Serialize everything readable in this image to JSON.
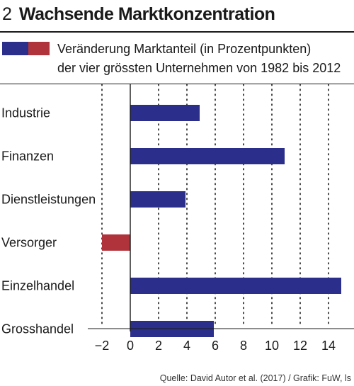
{
  "header": {
    "number": "2",
    "title": "Wachsende Marktkonzentration"
  },
  "legend": {
    "line1": "Veränderung Marktanteil (in Prozentpunkten)",
    "line2": "der vier grössten Unternehmen von 1982 bis 2012",
    "colors": [
      "#2b2e8a",
      "#b0333b"
    ]
  },
  "chart_data": {
    "type": "bar",
    "orientation": "horizontal",
    "categories": [
      "Industrie",
      "Finanzen",
      "Dienstleistungen",
      "Versorger",
      "Einzelhandel",
      "Grosshandel"
    ],
    "values": [
      4.9,
      10.9,
      3.9,
      -2,
      14.9,
      5.9
    ],
    "xlim": [
      -2,
      15
    ],
    "xticks": [
      -2,
      0,
      2,
      4,
      6,
      8,
      10,
      12,
      14
    ],
    "xtick_labels": [
      "−2",
      "0",
      "2",
      "4",
      "6",
      "8",
      "10",
      "12",
      "14"
    ],
    "grid": "vertical dotted",
    "colors": {
      "positive": "#2b2e8a",
      "negative": "#b0333b"
    }
  },
  "source": "Quelle: David Autor et al. (2017) / Grafik: FuW, ls"
}
